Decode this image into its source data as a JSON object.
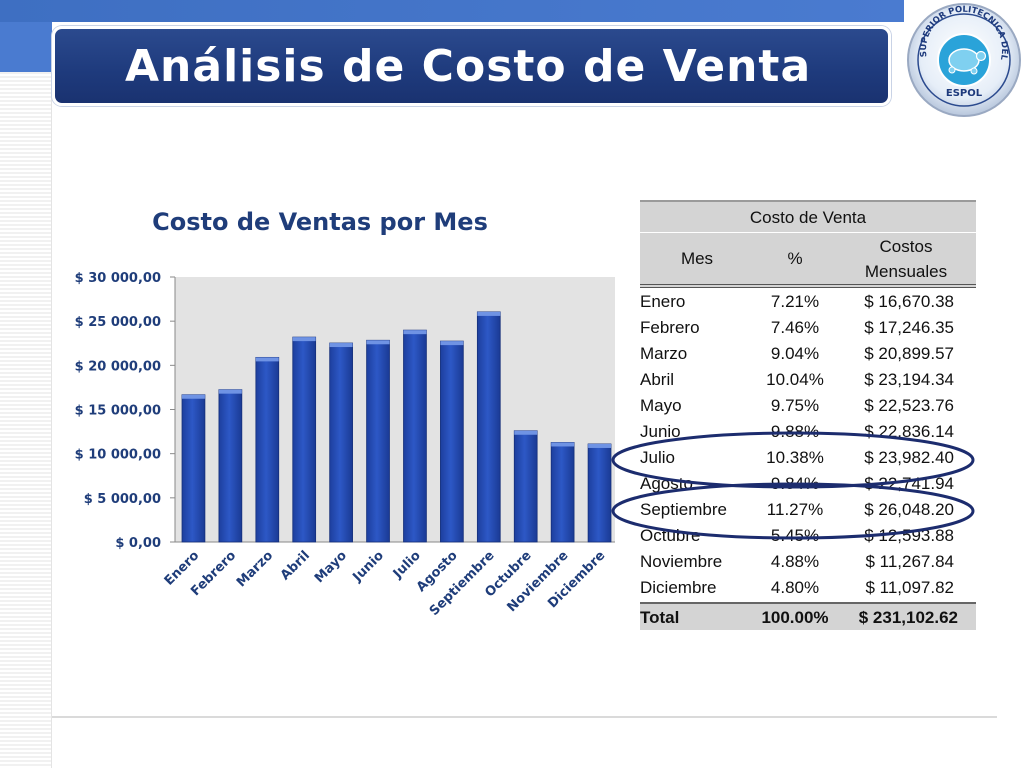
{
  "title": "Análisis de Costo de Venta",
  "logo": {
    "seal_text": "ESCUELA SUPERIOR POLITECNICA DEL LITORAL",
    "seal_bottom": "ESPOL",
    "icon": "turtle-seal"
  },
  "colors": {
    "accent": "#1e3a7c",
    "bar": "#2d58c6",
    "plot_bg": "#e3e3e3",
    "oval": "#1c2c6e"
  },
  "chart_data": {
    "type": "bar",
    "title": "Costo de Ventas por Mes",
    "categories": [
      "Enero",
      "Febrero",
      "Marzo",
      "Abril",
      "Mayo",
      "Junio",
      "Julio",
      "Agosto",
      "Septiembre",
      "Octubre",
      "Noviembre",
      "Diciembre"
    ],
    "values": [
      16670.38,
      17246.35,
      20899.57,
      23194.34,
      22523.76,
      22836.14,
      23982.4,
      22741.94,
      26048.2,
      12593.88,
      11267.84,
      11097.82
    ],
    "ylim": [
      0,
      30000
    ],
    "yticks": [
      0,
      5000,
      10000,
      15000,
      20000,
      25000,
      30000
    ],
    "ytick_labels": [
      "$ 0,00",
      "$ 5 000,00",
      "$ 10 000,00",
      "$ 15 000,00",
      "$ 20 000,00",
      "$ 25 000,00",
      "$ 30 000,00"
    ],
    "xlabel": "",
    "ylabel": "",
    "grid": false,
    "legend": "none"
  },
  "table": {
    "title": "Costo de Venta",
    "headers": [
      "Mes",
      "%",
      "Costos Mensuales"
    ],
    "rows": [
      [
        "Enero",
        "7.21%",
        "$ 16,670.38"
      ],
      [
        "Febrero",
        "7.46%",
        "$ 17,246.35"
      ],
      [
        "Marzo",
        "9.04%",
        "$ 20,899.57"
      ],
      [
        "Abril",
        "10.04%",
        "$ 23,194.34"
      ],
      [
        "Mayo",
        "9.75%",
        "$ 22,523.76"
      ],
      [
        "Junio",
        "9.88%",
        "$ 22,836.14"
      ],
      [
        "Julio",
        "10.38%",
        "$ 23,982.40"
      ],
      [
        "Agosto",
        "9.84%",
        "$ 22,741.94"
      ],
      [
        "Septiembre",
        "11.27%",
        "$ 26,048.20"
      ],
      [
        "Octubre",
        "5.45%",
        "$ 12,593.88"
      ],
      [
        "Noviembre",
        "4.88%",
        "$ 11,267.84"
      ],
      [
        "Diciembre",
        "4.80%",
        "$ 11,097.82"
      ]
    ],
    "total": [
      "Total",
      "100.00%",
      "$ 231,102.62"
    ],
    "highlighted_rows": [
      "Julio",
      "Septiembre"
    ]
  }
}
